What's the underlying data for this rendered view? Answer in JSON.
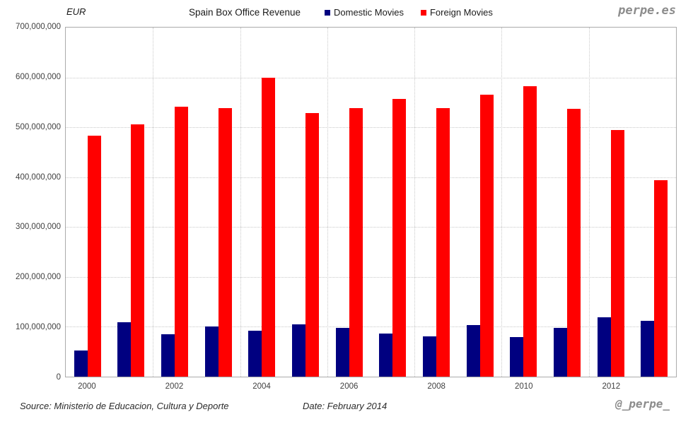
{
  "header": {
    "unit_label": "EUR",
    "brand": "perpe.es"
  },
  "footer": {
    "source": "Source: Ministerio de Educacion, Cultura y Deporte",
    "date": "Date: February 2014",
    "handle": "@_perpe_"
  },
  "colors": {
    "domestic": "#000080",
    "foreign": "#FF0000",
    "grid": "#c9c9c9",
    "plot_border": "#ababab",
    "axis_text": "#404040",
    "brand_text": "#8c8c8c"
  },
  "chart_data": {
    "type": "bar",
    "title": "Spain Box Office Revenue",
    "unit": "EUR",
    "categories": [
      "2000",
      "2001",
      "2002",
      "2003",
      "2004",
      "2005",
      "2006",
      "2007",
      "2008",
      "2009",
      "2010",
      "2011",
      "2012",
      "2013"
    ],
    "x_tick_labels": [
      "2000",
      "2002",
      "2004",
      "2006",
      "2008",
      "2010",
      "2012"
    ],
    "y_ticks": [
      "0",
      "100,000,000",
      "200,000,000",
      "300,000,000",
      "400,000,000",
      "500,000,000",
      "600,000,000",
      "700,000,000"
    ],
    "ylim": [
      0,
      700000000
    ],
    "grid": "dotted",
    "legend_position": "top",
    "xlabel": "",
    "ylabel": "EUR",
    "series": [
      {
        "name": "Domestic Movies",
        "color": "#000080",
        "values": [
          53000000,
          109000000,
          85000000,
          101000000,
          92000000,
          105000000,
          98000000,
          87000000,
          81000000,
          104000000,
          80000000,
          98000000,
          119000000,
          112000000
        ]
      },
      {
        "name": "Foreign Movies",
        "color": "#FF0000",
        "values": [
          483000000,
          506000000,
          541000000,
          539000000,
          599000000,
          528000000,
          538000000,
          557000000,
          538000000,
          566000000,
          582000000,
          537000000,
          494000000,
          394000000
        ]
      }
    ]
  }
}
